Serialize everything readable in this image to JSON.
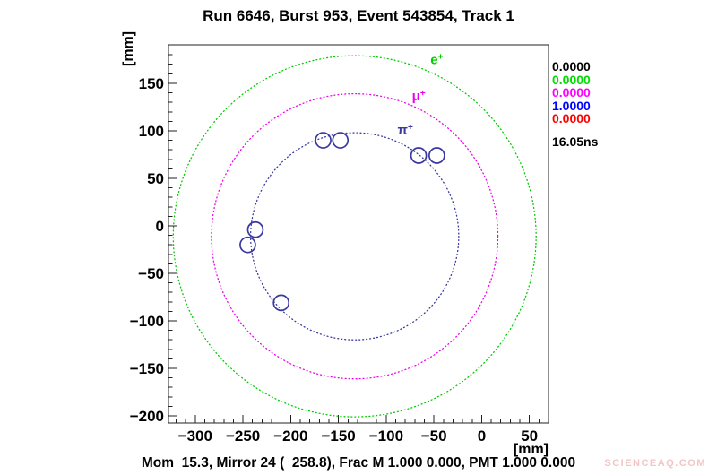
{
  "header": {
    "title": "Run 6646, Burst 953, Event 543854, Track 1"
  },
  "chart_data": {
    "type": "scatter",
    "title": "Run 6646, Burst 953, Event 543854, Track 1",
    "xlabel": "[mm]",
    "ylabel": "[mm]",
    "xlim": [
      -328,
      70
    ],
    "ylim": [
      -207.5,
      190.5
    ],
    "x_major_ticks": [
      -300,
      -250,
      -200,
      -150,
      -100,
      -50,
      0,
      50
    ],
    "y_major_ticks": [
      -200,
      -150,
      -100,
      -50,
      0,
      50,
      100,
      150
    ],
    "minor_tick_step": 10,
    "grid": false,
    "frame_color": "#222222",
    "ring_center": {
      "x": -133,
      "y": -11
    },
    "rings": [
      {
        "name": "e+",
        "label": "e",
        "sup": "+",
        "radius_mm": 190,
        "color": "#00cc00",
        "label_pos": {
          "x": -47,
          "y": 170
        }
      },
      {
        "name": "mu+",
        "label": "μ",
        "sup": "+",
        "radius_mm": 150,
        "color": "#ee00ee",
        "label_pos": {
          "x": -66,
          "y": 132
        }
      },
      {
        "name": "pi+",
        "label": "π",
        "sup": "+",
        "radius_mm": 109,
        "color": "#3939a0",
        "label_pos": {
          "x": -80,
          "y": 96
        }
      }
    ],
    "hits": {
      "marker": "open-circle",
      "color": "#3939a0",
      "marker_radius_px": 8.5,
      "points": [
        {
          "x": -166,
          "y": 90
        },
        {
          "x": -148,
          "y": 90
        },
        {
          "x": -66,
          "y": 74
        },
        {
          "x": -47,
          "y": 74
        },
        {
          "x": -237,
          "y": -4
        },
        {
          "x": -245,
          "y": -20
        },
        {
          "x": -210,
          "y": -81
        }
      ]
    }
  },
  "legend": {
    "values": [
      {
        "text": "0.0000",
        "color": "#000000"
      },
      {
        "text": "0.0000",
        "color": "#00dd00"
      },
      {
        "text": "0.0000",
        "color": "#ff00ff"
      },
      {
        "text": "1.0000",
        "color": "#0000ff"
      },
      {
        "text": "0.0000",
        "color": "#ff0000"
      }
    ],
    "time": "16.05ns"
  },
  "footer": {
    "info": "Mom  15.3, Mirror 24 (  258.8), Frac M 1.000 0.000, PMT 1.000 0.000",
    "watermark": "SCIENCEAQ.COM"
  }
}
